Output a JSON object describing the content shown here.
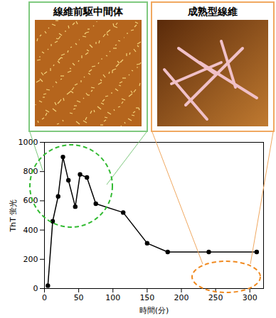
{
  "chart_data": {
    "type": "line",
    "annotations": [
      "線維前駆中間体",
      "成熟型線維"
    ],
    "x_label": "時間(分)",
    "y_label": "ThT 蛍光",
    "x": [
      5,
      12,
      20,
      27,
      35,
      45,
      52,
      62,
      75,
      115,
      150,
      180,
      240,
      310
    ],
    "values": [
      20,
      460,
      630,
      900,
      740,
      560,
      780,
      760,
      580,
      520,
      310,
      250,
      250,
      250
    ],
    "color": "#000000",
    "marker": "circle",
    "xlim": [
      0,
      320
    ],
    "xticks": [
      0,
      50,
      100,
      150,
      200,
      250,
      300
    ],
    "ylim": [
      0,
      1000
    ],
    "yticks": [
      0,
      200,
      400,
      600,
      800,
      1000
    ]
  }
}
